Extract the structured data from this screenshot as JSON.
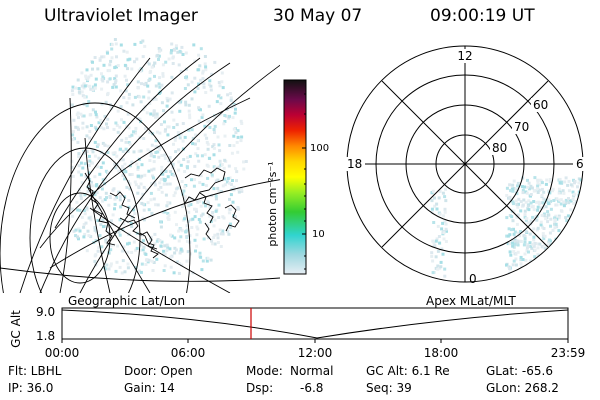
{
  "header": {
    "instrument": "Ultraviolet Imager",
    "date": "30 May 07",
    "time": "09:00:19 UT"
  },
  "colorbar": {
    "unit_label": "photon cm⁻²s⁻¹",
    "tick_labels": [
      "100",
      "10"
    ]
  },
  "panels": {
    "left_label": "Geographic Lat/Lon",
    "right_label": "Apex MLat/MLT"
  },
  "polar": {
    "mlt_labels": {
      "top": "12",
      "left": "18",
      "right": "6",
      "bottom": "0"
    },
    "lat_labels": [
      "60",
      "70",
      "80"
    ]
  },
  "altitude_plot": {
    "ylabel": "GC Alt",
    "yticks": [
      "9.0",
      "1.8"
    ],
    "xticks": [
      "00:00",
      "06:00",
      "12:00",
      "18:00",
      "23:59"
    ],
    "marker_color": "#cc0000"
  },
  "footer": {
    "col1": [
      "Flt: LBHL",
      "IP: 36.0"
    ],
    "col2": [
      "Door: Open",
      "Gain: 14"
    ],
    "col3a": [
      "Mode:",
      "Dsp:"
    ],
    "col3b": [
      "Normal",
      "-6.8"
    ],
    "col4": [
      "GC Alt: 6.1 Re",
      "Seq: 39"
    ],
    "col5": [
      "GLat: -65.6",
      "GLon: 268.2"
    ]
  }
}
